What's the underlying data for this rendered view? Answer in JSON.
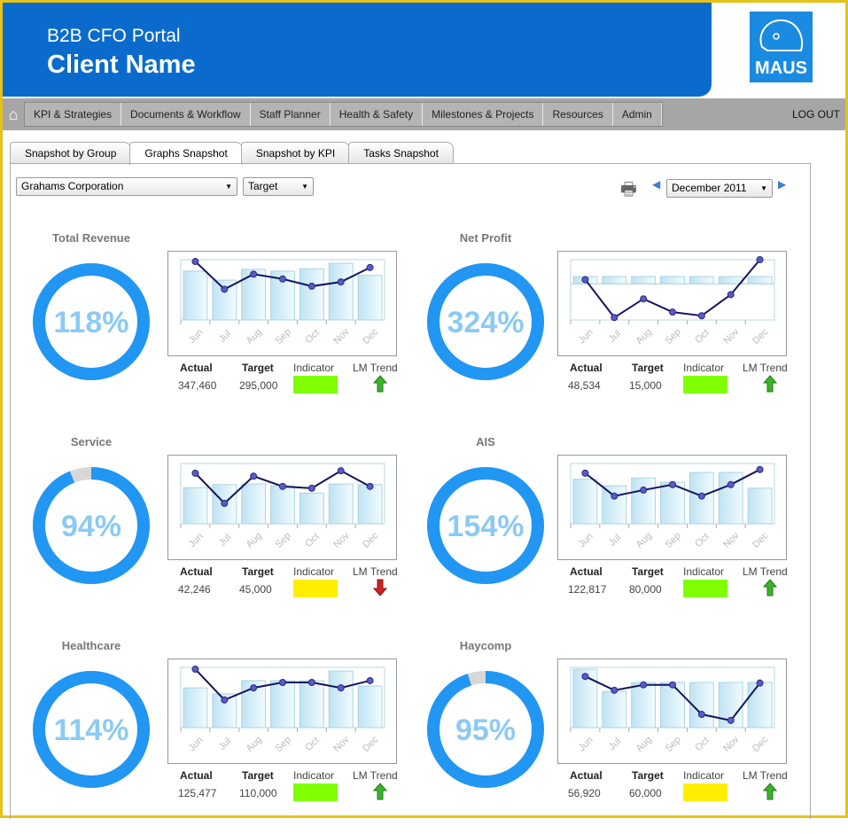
{
  "header": {
    "portal_title": "B2B CFO Portal",
    "client_name": "Client Name",
    "logo_text": "MAUS"
  },
  "nav": {
    "home_icon": "home-icon",
    "items": [
      "KPI & Strategies",
      "Documents & Workflow",
      "Staff Planner",
      "Health & Safety",
      "Milestones & Projects",
      "Resources",
      "Admin"
    ],
    "logout": "LOG OUT"
  },
  "tabs": [
    {
      "label": "Snapshot by Group"
    },
    {
      "label": "Graphs Snapshot",
      "active": true
    },
    {
      "label": "Snapshot by KPI"
    },
    {
      "label": "Tasks Snapshot"
    }
  ],
  "filters": {
    "company": "Grahams Corporation",
    "mode": "Target",
    "period": "December 2011"
  },
  "labels": {
    "actual": "Actual",
    "target": "Target",
    "indicator": "Indicator",
    "trend": "LM Trend"
  },
  "colors": {
    "ring": "#2196f3",
    "ring_rest": "#d8d8d8",
    "pct_text": "#8ccaf4",
    "green": "#80ff00",
    "yellow": "#ffee00",
    "line": "#14145a"
  },
  "chart_data": [
    {
      "type": "bar+line",
      "title": "Total Revenue",
      "categories": [
        "Jun",
        "Jul",
        "Aug",
        "Sep",
        "Oct",
        "Nov",
        "Dec"
      ],
      "bars": [
        81,
        66,
        84,
        81,
        85,
        94,
        74
      ],
      "line": [
        97,
        51,
        76,
        68,
        56,
        63,
        87
      ],
      "ylim": [
        0,
        100
      ]
    },
    {
      "type": "bar+line",
      "title": "Net Profit",
      "categories": [
        "Jun",
        "Jul",
        "Aug",
        "Sep",
        "Oct",
        "Nov",
        "Dec"
      ],
      "bars": [
        12,
        12,
        12,
        12,
        12,
        12,
        12
      ],
      "line": [
        7,
        -56,
        -25,
        -47,
        -53,
        -18,
        40
      ],
      "ylim": [
        -60,
        40
      ]
    },
    {
      "type": "bar+line",
      "title": "Service",
      "categories": [
        "Jun",
        "Jul",
        "Aug",
        "Sep",
        "Oct",
        "Nov",
        "Dec"
      ],
      "bars": [
        60,
        65,
        66,
        63,
        51,
        66,
        65
      ],
      "line": [
        84,
        34,
        79,
        62,
        59,
        88,
        62
      ],
      "ylim": [
        0,
        100
      ]
    },
    {
      "type": "bar+line",
      "title": "AIS",
      "categories": [
        "Jun",
        "Jul",
        "Aug",
        "Sep",
        "Oct",
        "Nov",
        "Dec"
      ],
      "bars": [
        74,
        63,
        76,
        69,
        85,
        85,
        59
      ],
      "line": [
        84,
        46,
        56,
        65,
        46,
        65,
        90
      ],
      "ylim": [
        0,
        100
      ]
    },
    {
      "type": "bar+line",
      "title": "Healthcare",
      "categories": [
        "Jun",
        "Jul",
        "Aug",
        "Sep",
        "Oct",
        "Nov",
        "Dec"
      ],
      "bars": [
        66,
        56,
        78,
        78,
        78,
        94,
        69
      ],
      "line": [
        97,
        46,
        66,
        75,
        75,
        66,
        78
      ],
      "ylim": [
        0,
        100
      ]
    },
    {
      "type": "bar+line",
      "title": "Haycomp",
      "categories": [
        "Jun",
        "Jul",
        "Aug",
        "Sep",
        "Oct",
        "Nov",
        "Dec"
      ],
      "bars": [
        97,
        60,
        75,
        75,
        75,
        75,
        75
      ],
      "line": [
        85,
        62,
        71,
        71,
        22,
        12,
        74
      ],
      "ylim": [
        0,
        100
      ]
    }
  ],
  "kpis": [
    {
      "title": "Total Revenue",
      "percent": "118%",
      "fill": 1.0,
      "actual": "347,460",
      "target": "295,000",
      "indicator": "green",
      "trend": "up"
    },
    {
      "title": "Net Profit",
      "percent": "324%",
      "fill": 1.0,
      "actual": "48,534",
      "target": "15,000",
      "indicator": "green",
      "trend": "up"
    },
    {
      "title": "Service",
      "percent": "94%",
      "fill": 0.94,
      "actual": "42,246",
      "target": "45,000",
      "indicator": "yellow",
      "trend": "down"
    },
    {
      "title": "AIS",
      "percent": "154%",
      "fill": 1.0,
      "actual": "122,817",
      "target": "80,000",
      "indicator": "green",
      "trend": "up"
    },
    {
      "title": "Healthcare",
      "percent": "114%",
      "fill": 1.0,
      "actual": "125,477",
      "target": "110,000",
      "indicator": "green",
      "trend": "up"
    },
    {
      "title": "Haycomp",
      "percent": "95%",
      "fill": 0.95,
      "actual": "56,920",
      "target": "60,000",
      "indicator": "yellow",
      "trend": "up"
    }
  ]
}
